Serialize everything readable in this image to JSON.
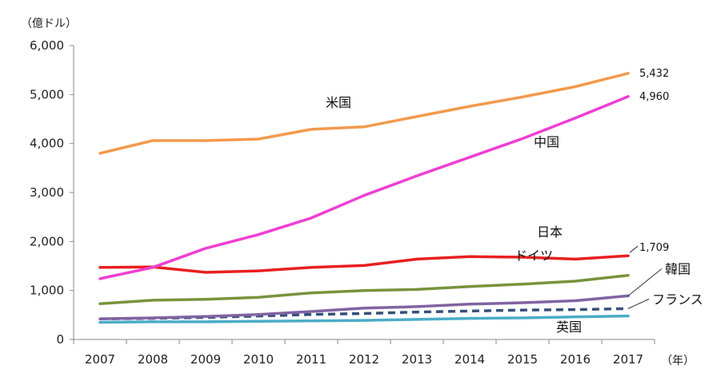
{
  "chart_data": {
    "type": "line",
    "y_unit": "（億ドル）",
    "x_unit": "（年）",
    "ylim": [
      0,
      6000
    ],
    "yticks": [
      "0",
      "1,000",
      "2,000",
      "3,000",
      "4,000",
      "5,000",
      "6,000"
    ],
    "categories": [
      "2007",
      "2008",
      "2009",
      "2010",
      "2011",
      "2012",
      "2013",
      "2014",
      "2015",
      "2016",
      "2017"
    ],
    "grid": false,
    "series": [
      {
        "name": "米国",
        "color": "#F39A4D",
        "dashed": false,
        "label_anchor": 3,
        "values": [
          3800,
          4060,
          4060,
          4090,
          4290,
          4340,
          4550,
          4760,
          4950,
          5160,
          5432
        ]
      },
      {
        "name": "中国",
        "color": "#EE3FD2",
        "dashed": false,
        "label_anchor": 8,
        "values": [
          1240,
          1470,
          1860,
          2140,
          2480,
          2940,
          3340,
          3720,
          4100,
          4520,
          4960
        ]
      },
      {
        "name": "日本",
        "color": "#E81F1F",
        "dashed": false,
        "label_anchor": 8,
        "values": [
          1470,
          1480,
          1370,
          1400,
          1470,
          1510,
          1640,
          1690,
          1680,
          1640,
          1709
        ]
      },
      {
        "name": "ドイツ",
        "color": "#78933C",
        "dashed": false,
        "label_anchor": 8,
        "values": [
          730,
          800,
          820,
          860,
          950,
          1000,
          1020,
          1080,
          1130,
          1190,
          1310
        ]
      },
      {
        "name": "韓国",
        "color": "#8064A2",
        "dashed": false,
        "label_anchor": 10,
        "values": [
          420,
          440,
          470,
          510,
          570,
          640,
          670,
          720,
          750,
          790,
          890
        ]
      },
      {
        "name": "フランス",
        "color": "#34507A",
        "dashed": true,
        "label_anchor": 10,
        "values": [
          420,
          430,
          450,
          480,
          510,
          530,
          560,
          580,
          600,
          610,
          630
        ]
      },
      {
        "name": "英国",
        "color": "#4BACC6",
        "dashed": false,
        "label_anchor": 9,
        "values": [
          350,
          360,
          360,
          370,
          380,
          390,
          410,
          430,
          440,
          460,
          480
        ]
      }
    ],
    "data_labels": [
      {
        "series": "米国",
        "index": 10,
        "text": "5,432"
      },
      {
        "series": "中国",
        "index": 10,
        "text": "4,960"
      },
      {
        "series": "日本",
        "index": 10,
        "text": "1,709"
      }
    ]
  }
}
